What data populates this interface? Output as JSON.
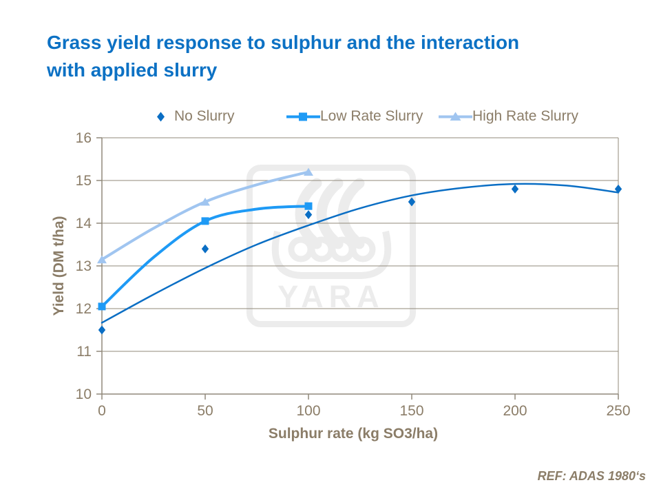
{
  "header": {
    "title_line1": "Grass yield response to sulphur and the interaction",
    "title_line2": "with applied slurry"
  },
  "watermark": {
    "text": "YARA"
  },
  "footer": {
    "ref_text": "REF: ADAS 1980‘s"
  },
  "colors": {
    "title_blue": "#0C71C4",
    "axis_text": "#8B7D68",
    "grid_line": "#90897A",
    "watermark_gray": "#ECECEC",
    "no_slurry_blue": "#0A6EC4",
    "low_rate_blue": "#1E9AF5",
    "high_rate_blue": "#A0C5F0"
  },
  "chart_data": {
    "type": "line",
    "title": "Grass yield response to sulphur and the interaction with applied slurry",
    "xlabel": "Sulphur rate (kg SO3/ha)",
    "ylabel": "Yield (DM t/ha)",
    "xlim": [
      0,
      250
    ],
    "ylim": [
      10,
      16
    ],
    "xticks": [
      0,
      50,
      100,
      150,
      200,
      250
    ],
    "yticks": [
      10,
      11,
      12,
      13,
      14,
      15,
      16
    ],
    "grid": "horizontal",
    "legend_position": "top-center",
    "series": [
      {
        "name": "No Slurry",
        "marker": "diamond",
        "color": "#0A6EC4",
        "line_width": 2.5,
        "x": [
          0,
          50,
          100,
          150,
          200,
          250
        ],
        "y": [
          11.5,
          13.4,
          14.2,
          14.5,
          14.8,
          14.8
        ],
        "trend_x": [
          0,
          25,
          50,
          75,
          100,
          125,
          150,
          175,
          200,
          225,
          250
        ],
        "trend_y": [
          11.67,
          12.33,
          12.95,
          13.5,
          13.95,
          14.35,
          14.65,
          14.83,
          14.92,
          14.88,
          14.72
        ]
      },
      {
        "name": "Low Rate Slurry",
        "marker": "square",
        "color": "#1E9AF5",
        "line_width": 4,
        "x": [
          0,
          50,
          100
        ],
        "y": [
          12.05,
          14.05,
          14.4
        ],
        "trend_x": [
          0,
          25,
          50,
          75,
          100
        ],
        "trend_y": [
          12.05,
          13.2,
          14.05,
          14.33,
          14.4
        ]
      },
      {
        "name": "High Rate Slurry",
        "marker": "triangle",
        "color": "#A0C5F0",
        "line_width": 4,
        "x": [
          0,
          50,
          100
        ],
        "y": [
          13.15,
          14.5,
          15.2
        ],
        "trend_x": [
          0,
          25,
          50,
          75,
          100
        ],
        "trend_y": [
          13.15,
          13.88,
          14.5,
          14.9,
          15.2
        ]
      }
    ]
  }
}
